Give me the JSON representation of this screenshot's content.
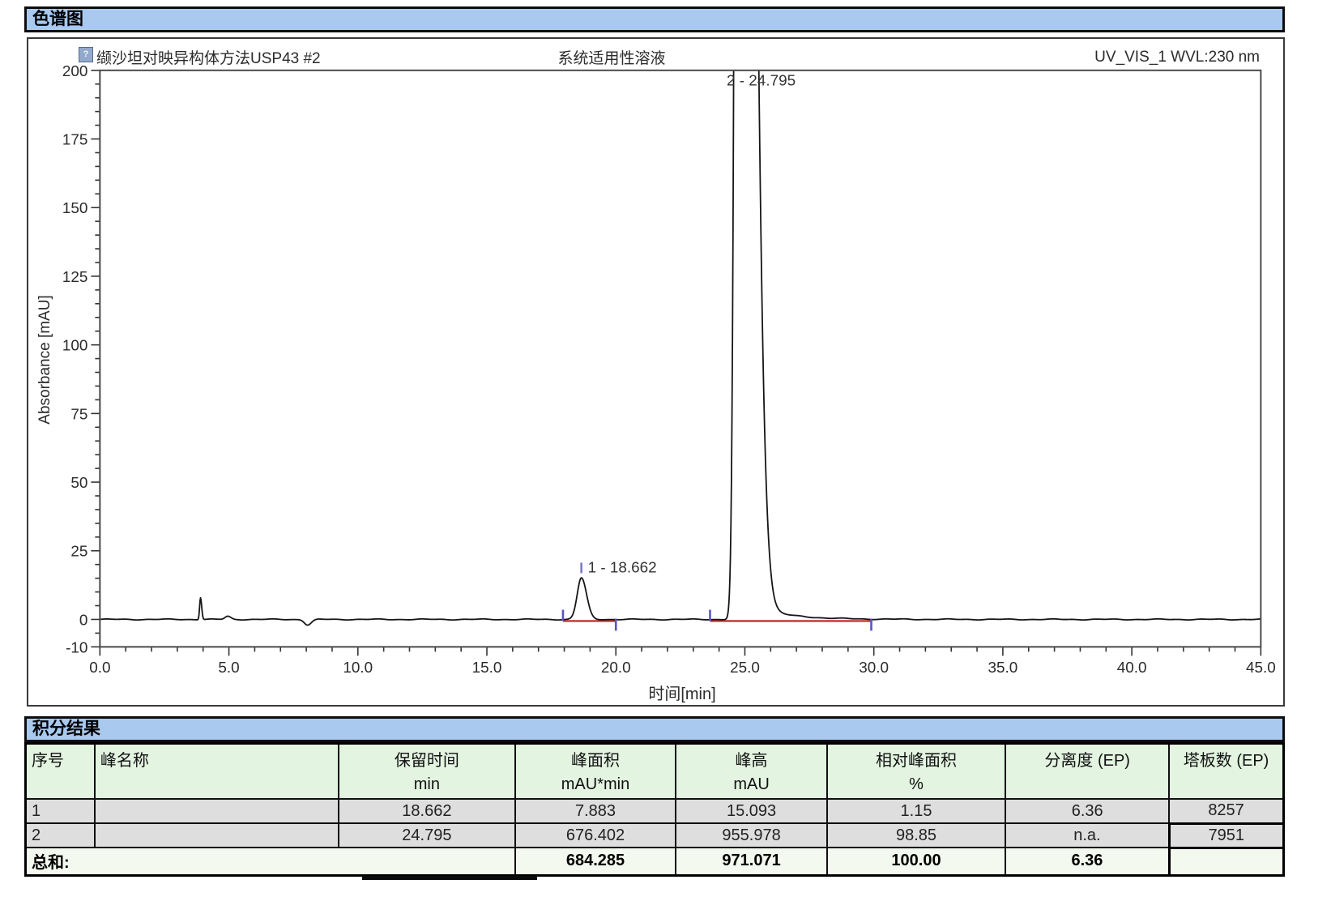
{
  "chromatogram_section": {
    "banner_title": "色谱图",
    "header": {
      "icon": "injection-icon",
      "left_title": "缬沙坦对映异构体方法USP43 #2",
      "center_title": "系统适用性溶液",
      "right_title": "UV_VIS_1 WVL:230 nm"
    }
  },
  "chart_data": {
    "type": "line",
    "title": "缬沙坦对映异构体方法USP43 #2 — 系统适用性溶液",
    "detector": "UV_VIS_1 WVL:230 nm",
    "xlabel": "时间[min]",
    "ylabel": "Absorbance [mAU]",
    "xlim": [
      0,
      45
    ],
    "ylim": [
      -10,
      200
    ],
    "x_ticks": [
      0,
      5,
      10,
      15,
      20,
      25,
      30,
      35,
      40,
      45
    ],
    "x_tick_labels": [
      "0.0",
      "5.0",
      "10.0",
      "15.0",
      "20.0",
      "25.0",
      "30.0",
      "35.0",
      "40.0",
      "45.0"
    ],
    "x_minor_step": 1,
    "y_ticks": [
      -10,
      0,
      25,
      50,
      75,
      100,
      125,
      150,
      175,
      200
    ],
    "y_tick_labels": [
      "-10",
      "0",
      "25",
      "50",
      "75",
      "100",
      "125",
      "150",
      "175",
      "200"
    ],
    "y_minor_step": 5,
    "trace_color": "#151515",
    "baseline_color": "#c53030",
    "marker_color": "#5656c0",
    "grid": false,
    "legend": "none",
    "peaks": [
      {
        "id": 1,
        "rt": 18.662,
        "h": 15.093,
        "sl": 0.16,
        "sr": 0.2,
        "tail": 0,
        "tau": 1,
        "label": "1 - 18.662",
        "label_pos": "apex",
        "apex_tick": true,
        "int_start": 17.95,
        "int_end": 20.0
      },
      {
        "id": 2,
        "rt": 24.795,
        "h": 955.978,
        "sl": 0.13,
        "sr": 0.42,
        "tail": 7,
        "tau": 1.3,
        "label": "2 - 24.795",
        "label_pos": "top",
        "apex_tick": false,
        "int_start": 23.65,
        "int_end": 29.9
      }
    ],
    "baseline_artifacts": [
      {
        "rt": 3.9,
        "h": 8.0,
        "sl": 0.035,
        "sr": 0.045,
        "tail": 0,
        "tau": 1
      },
      {
        "rt": 4.95,
        "h": 1.1,
        "sl": 0.1,
        "sr": 0.12,
        "tail": 0,
        "tau": 1
      },
      {
        "rt": 8.05,
        "h": -2.0,
        "sl": 0.12,
        "sr": 0.15,
        "tail": 0,
        "tau": 1
      }
    ]
  },
  "results_section": {
    "banner_title": "积分结果",
    "table": {
      "columns": [
        {
          "label": "序号",
          "unit": ""
        },
        {
          "label": "峰名称",
          "unit": ""
        },
        {
          "label": "保留时间",
          "unit": "min"
        },
        {
          "label": "峰面积",
          "unit": "mAU*min"
        },
        {
          "label": "峰高",
          "unit": "mAU"
        },
        {
          "label": "相对峰面积",
          "unit": "%"
        },
        {
          "label": "分离度 (EP)",
          "unit": ""
        },
        {
          "label": "塔板数 (EP)",
          "unit": ""
        }
      ],
      "rows": [
        [
          "1",
          "",
          "18.662",
          "7.883",
          "15.093",
          "1.15",
          "6.36",
          "8257"
        ],
        [
          "2",
          "",
          "24.795",
          "676.402",
          "955.978",
          "98.85",
          "n.a.",
          "7951"
        ]
      ],
      "sum_row": {
        "label": "总和:",
        "values": [
          "684.285",
          "971.071",
          "100.00",
          "6.36",
          ""
        ]
      }
    }
  }
}
